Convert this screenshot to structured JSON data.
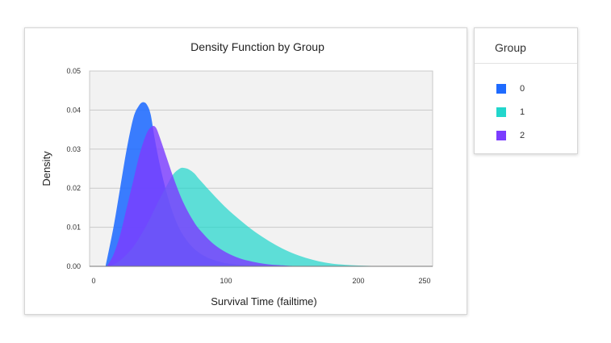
{
  "chart_data": {
    "type": "area",
    "title": "Density Function by Group",
    "xlabel": "Survival Time (failtime)",
    "ylabel": "Density",
    "xlim": [
      0,
      250
    ],
    "ylim": [
      0,
      0.05
    ],
    "x_ticks": [
      "0",
      "100",
      "200",
      "250"
    ],
    "x_tick_values": [
      0,
      100,
      200,
      250
    ],
    "y_ticks": [
      "0.00",
      "0.01",
      "0.02",
      "0.03",
      "0.04",
      "0.05"
    ],
    "y_tick_values": [
      0,
      0.01,
      0.02,
      0.03,
      0.04,
      0.05
    ],
    "grid": "horizontal",
    "plot_background": "#f2f2f2",
    "legend_title": "Group",
    "legend_position": "right",
    "series": [
      {
        "name": "0",
        "color": "#1f6bff",
        "opacity": 0.88,
        "x": [
          9,
          15,
          20,
          25,
          30,
          34,
          37,
          40,
          43,
          46,
          50,
          55,
          60,
          65,
          70,
          75,
          80,
          85,
          90,
          95,
          100,
          110,
          120,
          130,
          140
        ],
        "y": [
          0,
          0.01,
          0.02,
          0.03,
          0.038,
          0.041,
          0.042,
          0.0415,
          0.039,
          0.033,
          0.026,
          0.019,
          0.0135,
          0.0095,
          0.0068,
          0.0048,
          0.0034,
          0.0024,
          0.0017,
          0.0012,
          0.0008,
          0.0004,
          0.0002,
          0.0001,
          0
        ]
      },
      {
        "name": "1",
        "color": "#22d6cc",
        "opacity": 0.72,
        "x": [
          12,
          20,
          30,
          40,
          48,
          55,
          60,
          65,
          68,
          72,
          76,
          80,
          90,
          100,
          110,
          120,
          130,
          140,
          150,
          160,
          170,
          180,
          190,
          200,
          210,
          222
        ],
        "y": [
          0,
          0.0015,
          0.005,
          0.0105,
          0.016,
          0.0205,
          0.0235,
          0.025,
          0.0252,
          0.0248,
          0.0238,
          0.0222,
          0.0185,
          0.015,
          0.012,
          0.0093,
          0.007,
          0.005,
          0.0034,
          0.0022,
          0.0013,
          0.0007,
          0.0004,
          0.0002,
          0.0001,
          0
        ]
      },
      {
        "name": "2",
        "color": "#7b3dff",
        "opacity": 0.82,
        "x": [
          10,
          15,
          20,
          25,
          30,
          35,
          40,
          44,
          47,
          50,
          55,
          60,
          65,
          70,
          75,
          80,
          90,
          100,
          110,
          120,
          130,
          140,
          155
        ],
        "y": [
          0,
          0.003,
          0.008,
          0.015,
          0.022,
          0.029,
          0.034,
          0.0358,
          0.0355,
          0.033,
          0.028,
          0.023,
          0.0185,
          0.0148,
          0.0118,
          0.0094,
          0.0059,
          0.0036,
          0.0021,
          0.0012,
          0.0006,
          0.0003,
          0
        ]
      }
    ]
  }
}
